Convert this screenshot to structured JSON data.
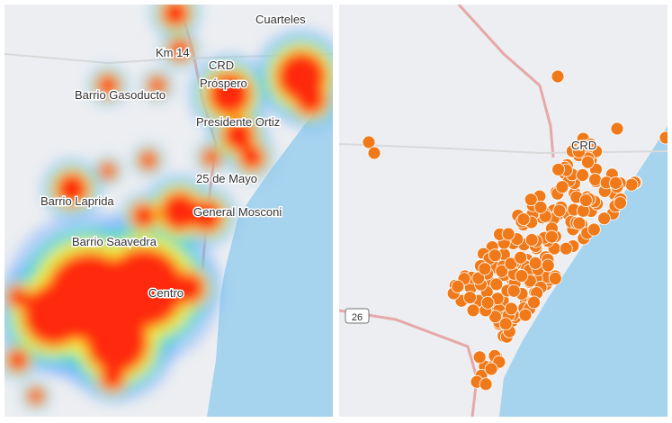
{
  "left_map": {
    "labels": [
      "Cuarteles",
      "Km 14",
      "CRD",
      "Barrio Gasoducto",
      "Próspero",
      "Presidente Ortiz",
      "25 de Mayo",
      "General Mosconi",
      "Barrio Saavedra",
      "Barrio Laprida",
      "Centro"
    ]
  },
  "right_map": {
    "labels": [
      "CRD",
      "26"
    ]
  }
}
